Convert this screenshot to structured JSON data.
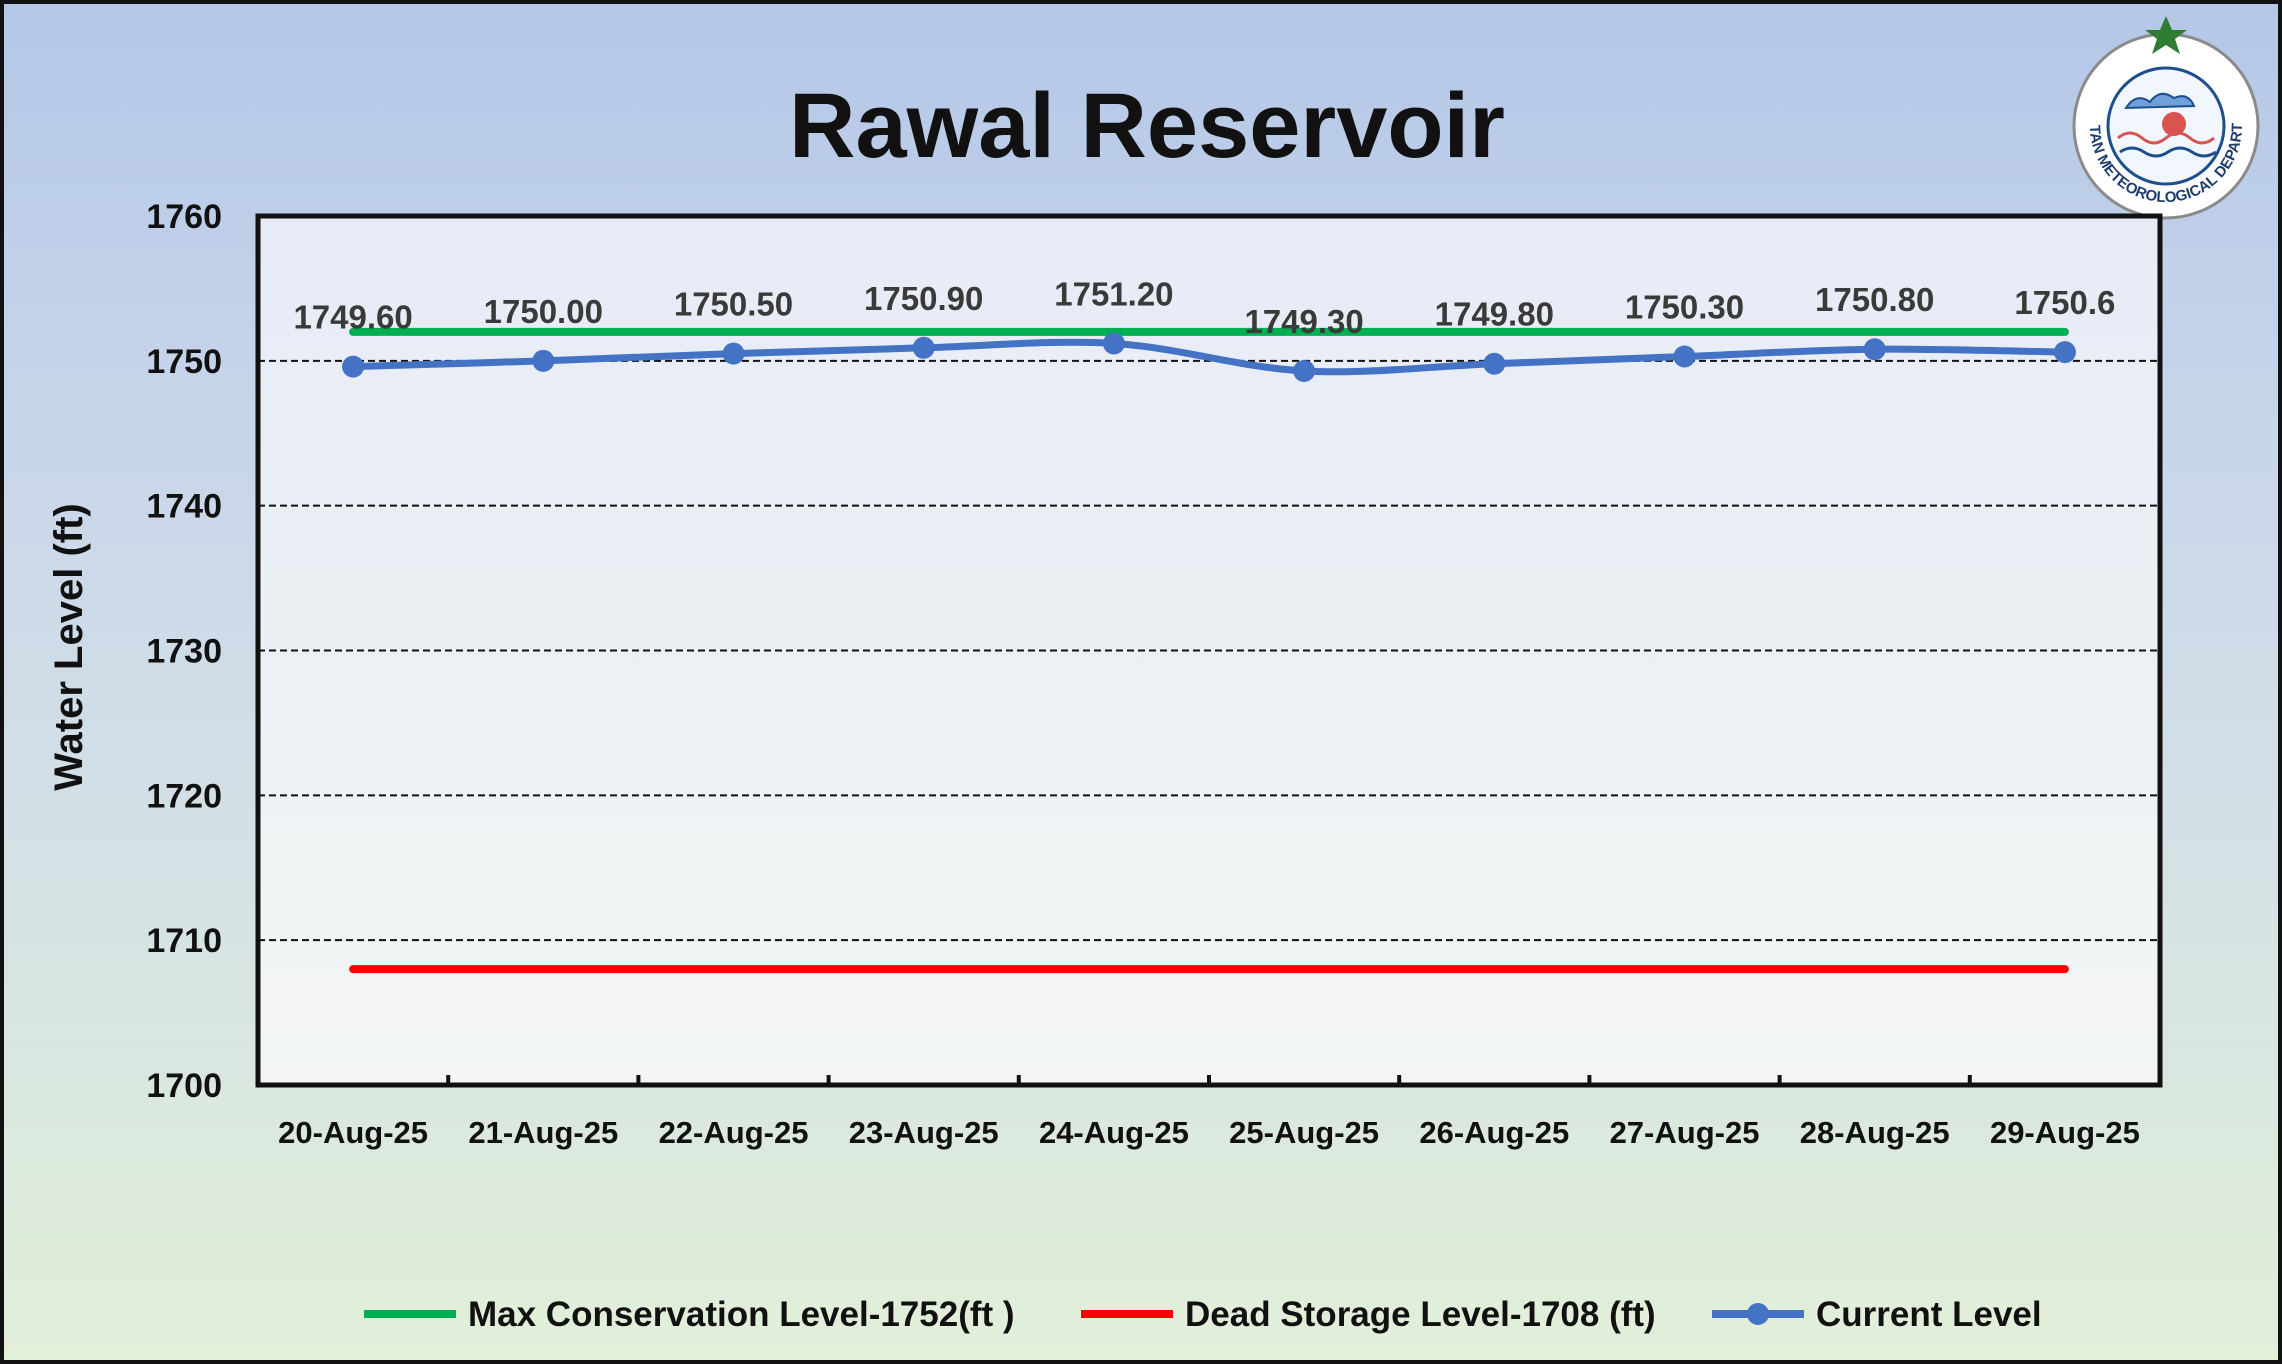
{
  "chart_data": {
    "type": "line",
    "title": "Rawal Reservoir",
    "ylabel": "Water Level (ft)",
    "xlabel": "",
    "ylim": [
      1700,
      1760
    ],
    "yticks": [
      "1700",
      "1710",
      "1720",
      "1730",
      "1740",
      "1750",
      "1760"
    ],
    "grid": "horizontal dashed",
    "legend_position": "bottom",
    "categories": [
      "20-Aug-25",
      "21-Aug-25",
      "22-Aug-25",
      "23-Aug-25",
      "24-Aug-25",
      "25-Aug-25",
      "26-Aug-25",
      "27-Aug-25",
      "28-Aug-25",
      "29-Aug-25"
    ],
    "series": [
      {
        "name": "Max Conservation Level-1752(ft )",
        "values": [
          1752,
          1752,
          1752,
          1752,
          1752,
          1752,
          1752,
          1752,
          1752,
          1752
        ],
        "color": "#00b050"
      },
      {
        "name": "Dead Storage Level-1708 (ft)",
        "values": [
          1708,
          1708,
          1708,
          1708,
          1708,
          1708,
          1708,
          1708,
          1708,
          1708
        ],
        "color": "#ff0000"
      },
      {
        "name": "Current Level",
        "values": [
          1749.6,
          1750.0,
          1750.5,
          1750.9,
          1751.2,
          1749.3,
          1749.8,
          1750.3,
          1750.8,
          1750.6
        ],
        "data_labels": [
          "1749.60",
          "1750.00",
          "1750.50",
          "1750.90",
          "1751.20",
          "1749.30",
          "1749.80",
          "1750.30",
          "1750.80",
          "1750.6"
        ],
        "color": "#4472c4"
      }
    ]
  },
  "logo": {
    "icon": "pakistan-meteorological-department-logo-icon",
    "text": "PAKISTAN METEOROLOGICAL DEPARTMENT"
  }
}
